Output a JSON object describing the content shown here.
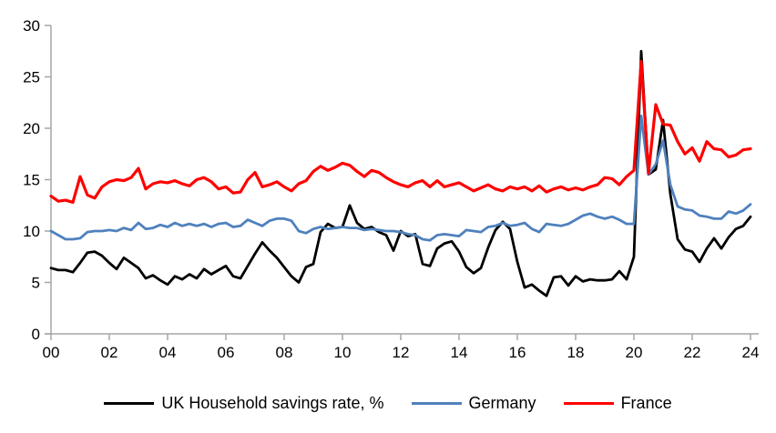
{
  "chart_data": {
    "type": "line",
    "title": "",
    "x_start": 2000,
    "x_step": 0.25,
    "xlim": [
      2000,
      2024.25
    ],
    "ylim": [
      0,
      30
    ],
    "grid": "off",
    "legend_position": "bottom",
    "axis_color": "#a6a6a6",
    "y_ticks": [
      0,
      5,
      10,
      15,
      20,
      25,
      30
    ],
    "x_ticks": [
      {
        "label": "00",
        "year": 2000
      },
      {
        "label": "02",
        "year": 2002
      },
      {
        "label": "04",
        "year": 2004
      },
      {
        "label": "06",
        "year": 2006
      },
      {
        "label": "08",
        "year": 2008
      },
      {
        "label": "10",
        "year": 2010
      },
      {
        "label": "12",
        "year": 2012
      },
      {
        "label": "14",
        "year": 2014
      },
      {
        "label": "16",
        "year": 2016
      },
      {
        "label": "18",
        "year": 2018
      },
      {
        "label": "20",
        "year": 2020
      },
      {
        "label": "22",
        "year": 2022
      },
      {
        "label": "24",
        "year": 2024
      }
    ],
    "series": [
      {
        "id": "uk",
        "name": "UK Household savings rate, %",
        "color": "#000000",
        "values": [
          6.4,
          6.2,
          6.2,
          6.0,
          6.9,
          7.9,
          8.0,
          7.6,
          6.9,
          6.3,
          7.4,
          6.9,
          6.4,
          5.4,
          5.7,
          5.2,
          4.8,
          5.6,
          5.3,
          5.8,
          5.4,
          6.3,
          5.8,
          6.2,
          6.6,
          5.6,
          5.4,
          6.6,
          7.8,
          8.9,
          8.1,
          7.4,
          6.5,
          5.6,
          5.0,
          6.5,
          6.8,
          9.9,
          10.7,
          10.3,
          10.4,
          12.5,
          10.8,
          10.2,
          10.4,
          9.9,
          9.6,
          8.1,
          10.0,
          9.5,
          9.7,
          6.8,
          6.6,
          8.3,
          8.8,
          9.0,
          8.0,
          6.5,
          5.9,
          6.4,
          8.4,
          10.1,
          10.9,
          10.2,
          7.0,
          4.5,
          4.8,
          4.2,
          3.7,
          5.5,
          5.6,
          4.7,
          5.6,
          5.1,
          5.3,
          5.2,
          5.2,
          5.3,
          6.1,
          5.3,
          7.5,
          27.5,
          15.5,
          16.0,
          20.8,
          13.6,
          9.2,
          8.2,
          8.0,
          7.0,
          8.3,
          9.3,
          8.3,
          9.4,
          10.2,
          10.5,
          11.4
        ]
      },
      {
        "id": "germany",
        "name": "Germany",
        "color": "#4f81bd",
        "values": [
          10.0,
          9.6,
          9.2,
          9.2,
          9.3,
          9.9,
          10.0,
          10.0,
          10.1,
          10.0,
          10.3,
          10.1,
          10.8,
          10.2,
          10.3,
          10.6,
          10.4,
          10.8,
          10.5,
          10.7,
          10.5,
          10.7,
          10.4,
          10.7,
          10.8,
          10.4,
          10.5,
          11.1,
          10.8,
          10.5,
          11.0,
          11.2,
          11.2,
          11.0,
          10.0,
          9.8,
          10.2,
          10.4,
          10.2,
          10.3,
          10.4,
          10.3,
          10.3,
          10.1,
          10.2,
          10.1,
          10.0,
          10.0,
          9.9,
          9.7,
          9.6,
          9.2,
          9.1,
          9.6,
          9.7,
          9.6,
          9.5,
          10.1,
          10.0,
          9.9,
          10.4,
          10.5,
          10.8,
          10.5,
          10.6,
          10.8,
          10.2,
          9.9,
          10.7,
          10.6,
          10.5,
          10.7,
          11.1,
          11.5,
          11.7,
          11.4,
          11.2,
          11.4,
          11.1,
          10.7,
          10.7,
          21.2,
          15.5,
          16.5,
          18.8,
          14.5,
          12.4,
          12.1,
          12.0,
          11.5,
          11.4,
          11.2,
          11.2,
          11.9,
          11.7,
          12.0,
          12.6
        ]
      },
      {
        "id": "france",
        "name": "France",
        "color": "#ff0000",
        "values": [
          13.4,
          12.9,
          13.0,
          12.8,
          15.3,
          13.5,
          13.2,
          14.3,
          14.8,
          15.0,
          14.9,
          15.2,
          16.1,
          14.1,
          14.6,
          14.8,
          14.7,
          14.9,
          14.6,
          14.4,
          15.0,
          15.2,
          14.8,
          14.1,
          14.3,
          13.7,
          13.8,
          15.0,
          15.7,
          14.3,
          14.5,
          14.8,
          14.3,
          13.9,
          14.6,
          14.9,
          15.8,
          16.3,
          15.9,
          16.2,
          16.6,
          16.4,
          15.8,
          15.3,
          15.9,
          15.7,
          15.2,
          14.8,
          14.5,
          14.3,
          14.7,
          14.9,
          14.3,
          14.9,
          14.3,
          14.5,
          14.7,
          14.3,
          13.9,
          14.2,
          14.5,
          14.1,
          13.9,
          14.3,
          14.1,
          14.3,
          13.9,
          14.4,
          13.8,
          14.1,
          14.3,
          14.0,
          14.2,
          14.0,
          14.3,
          14.5,
          15.2,
          15.1,
          14.5,
          15.3,
          15.9,
          26.5,
          15.6,
          22.3,
          20.4,
          20.3,
          18.7,
          17.5,
          18.1,
          16.8,
          18.7,
          18.0,
          17.9,
          17.2,
          17.4,
          17.9,
          18.0
        ]
      }
    ]
  }
}
